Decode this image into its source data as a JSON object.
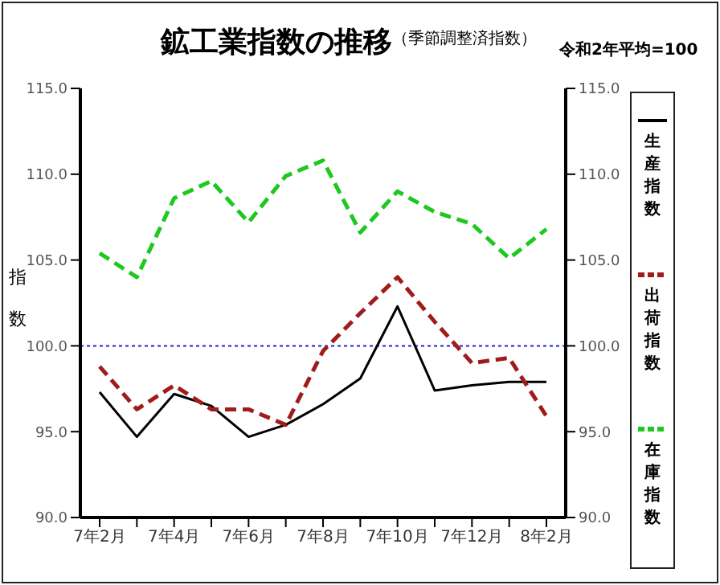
{
  "chart_data": {
    "type": "line",
    "title": "鉱工業指数の推移",
    "subtitle": "（季節調整済指数）",
    "ylabel": "指数",
    "annotations": [
      "令和2年平均=100"
    ],
    "categories": [
      "7年2月",
      null,
      "7年4月",
      null,
      "7年6月",
      null,
      "7年8月",
      null,
      "7年10月",
      null,
      "7年12月",
      null,
      "8年2月"
    ],
    "series": [
      {
        "name": "生産指数",
        "color": "#000000",
        "line_style": "solid",
        "values": [
          97.3,
          94.7,
          97.2,
          96.5,
          94.7,
          95.4,
          96.6,
          98.1,
          102.3,
          97.4,
          97.7,
          97.9,
          97.9
        ]
      },
      {
        "name": "出荷指数",
        "color": "#a01c1c",
        "line_style": "dashed",
        "values": [
          98.8,
          96.3,
          97.7,
          96.3,
          96.3,
          95.4,
          99.7,
          101.9,
          104.0,
          101.4,
          99.0,
          99.3,
          95.9
        ]
      },
      {
        "name": "在庫指数",
        "color": "#1ec81e",
        "line_style": "dashed",
        "values": [
          105.4,
          104.0,
          108.6,
          109.6,
          107.2,
          109.9,
          110.8,
          106.6,
          109.0,
          107.8,
          107.1,
          105.1,
          106.8
        ]
      }
    ],
    "ylim": [
      90,
      115
    ],
    "yticks": [
      {
        "value": 90,
        "label": "90.0"
      },
      {
        "value": 95,
        "label": "95.0"
      },
      {
        "value": 100,
        "label": "100.0"
      },
      {
        "value": 105,
        "label": "105.0"
      },
      {
        "value": 110,
        "label": "110.0"
      },
      {
        "value": 115,
        "label": "115.0"
      }
    ],
    "y2lim": [
      90,
      115
    ],
    "y2ticks": [
      {
        "value": 90,
        "label": "90.0"
      },
      {
        "value": 95,
        "label": "95.0"
      },
      {
        "value": 100,
        "label": "100.0"
      },
      {
        "value": 105,
        "label": "105.0"
      },
      {
        "value": 110,
        "label": "110.0"
      },
      {
        "value": 115,
        "label": "115.0"
      }
    ],
    "ref_lines": [
      {
        "axis": "y",
        "value": 100,
        "color": "#2020e0",
        "line_style": "dotted"
      }
    ],
    "grid": false,
    "legend": "right",
    "marker": "none"
  }
}
